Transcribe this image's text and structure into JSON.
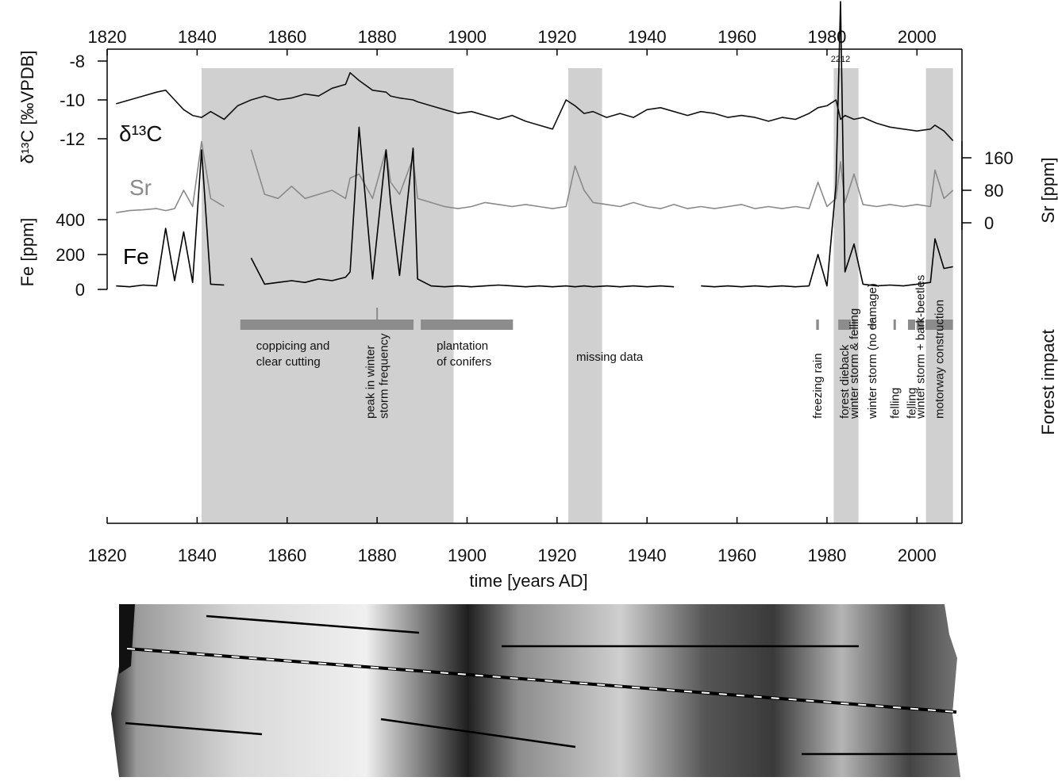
{
  "chart_data": {
    "type": "line",
    "xlabel": "time [years AD]",
    "ylabel": "δ¹³C [‰VPDB]",
    "y2label": "Sr [ppm]",
    "y3label": "Fe [ppm]",
    "impact_label": "Forest impact",
    "xlim": [
      1820,
      2010
    ],
    "xticks": [
      1820,
      1840,
      1860,
      1880,
      1900,
      1920,
      1940,
      1960,
      1980,
      2000
    ],
    "ylim": [
      -13,
      -8
    ],
    "yticks": [
      -12,
      -10,
      -8
    ],
    "y2lim": [
      0,
      160
    ],
    "y2ticks": [
      0,
      80,
      160
    ],
    "y3lim": [
      0,
      400
    ],
    "y3ticks": [
      0,
      200,
      400
    ],
    "x": [
      1822,
      1825,
      1828,
      1831,
      1833,
      1835,
      1837,
      1839,
      1841,
      1843,
      1846,
      1849,
      1852,
      1855,
      1858,
      1861,
      1864,
      1867,
      1870,
      1873,
      1874,
      1876,
      1879,
      1882,
      1883,
      1885,
      1888,
      1889,
      1892,
      1895,
      1898,
      1901,
      1904,
      1907,
      1910,
      1913,
      1916,
      1919,
      1922,
      1924,
      1926,
      1928,
      1931,
      1934,
      1937,
      1940,
      1943,
      1946,
      1949,
      1952,
      1955,
      1958,
      1961,
      1964,
      1967,
      1970,
      1973,
      1976,
      1978,
      1980,
      1982,
      1983,
      1984,
      1986,
      1988,
      1991,
      1994,
      1997,
      2000,
      2003,
      2004,
      2006,
      2008
    ],
    "series": [
      {
        "name": "δ¹³C",
        "color": "#111111",
        "axis": "y",
        "values": [
          -10.2,
          -10.0,
          -9.8,
          -9.6,
          -9.5,
          -10.0,
          -10.5,
          -10.8,
          -10.9,
          -10.6,
          -11.0,
          -10.3,
          -10.0,
          -9.8,
          -10.0,
          -9.9,
          -9.7,
          -9.8,
          -9.4,
          -9.2,
          -8.6,
          -9.0,
          -9.5,
          -9.6,
          -9.8,
          -9.9,
          -10.0,
          -10.1,
          -10.3,
          -10.5,
          -10.7,
          -10.6,
          -10.8,
          -11.0,
          -10.8,
          -11.1,
          -11.3,
          -11.5,
          -10.0,
          -10.3,
          -10.7,
          -10.6,
          -10.9,
          -10.7,
          -10.9,
          -10.5,
          -10.4,
          -10.6,
          -10.8,
          -10.6,
          -10.7,
          -10.9,
          -10.8,
          -10.9,
          -11.1,
          -10.9,
          -11.0,
          -10.7,
          -10.4,
          -10.3,
          -10.0,
          -11.0,
          -10.8,
          -11.0,
          -10.9,
          -11.2,
          -11.4,
          -11.5,
          -11.6,
          -11.5,
          -11.3,
          -11.6,
          -12.1
        ]
      },
      {
        "name": "Sr",
        "color": "#8a8a8a",
        "axis": "y2",
        "values": [
          25,
          30,
          32,
          35,
          30,
          35,
          80,
          40,
          200,
          60,
          40,
          null,
          180,
          70,
          60,
          90,
          60,
          70,
          80,
          60,
          110,
          120,
          60,
          180,
          100,
          70,
          160,
          60,
          50,
          40,
          35,
          40,
          50,
          45,
          40,
          45,
          40,
          35,
          40,
          140,
          80,
          50,
          45,
          40,
          50,
          40,
          35,
          45,
          35,
          40,
          35,
          40,
          45,
          35,
          40,
          35,
          40,
          35,
          100,
          40,
          60,
          150,
          50,
          120,
          45,
          40,
          45,
          40,
          45,
          40,
          130,
          60,
          80
        ]
      },
      {
        "name": "Fe",
        "color": "#000000",
        "axis": "y3",
        "values": [
          20,
          15,
          25,
          20,
          350,
          50,
          330,
          40,
          800,
          30,
          25,
          null,
          180,
          30,
          40,
          50,
          40,
          60,
          50,
          70,
          100,
          930,
          60,
          800,
          500,
          80,
          810,
          60,
          20,
          15,
          20,
          15,
          20,
          25,
          20,
          15,
          20,
          15,
          20,
          15,
          20,
          15,
          20,
          15,
          20,
          15,
          20,
          15,
          null,
          20,
          15,
          20,
          15,
          20,
          15,
          20,
          15,
          20,
          200,
          20,
          600,
          1650,
          100,
          260,
          30,
          20,
          25,
          20,
          30,
          40,
          290,
          120,
          130
        ]
      }
    ],
    "shaded_periods": [
      [
        1841,
        1897
      ],
      [
        1922.5,
        1930
      ],
      [
        1981.5,
        1987
      ],
      [
        2002,
        2008
      ]
    ],
    "annotations": [
      "missing data",
      "2212"
    ],
    "events": [
      {
        "label": [
          "coppicing and",
          "clear cutting"
        ],
        "start": 1849.6,
        "end": 1888.1,
        "orientation": "horizontal"
      },
      {
        "label": [
          "peak in winter",
          "storm frequency"
        ],
        "start": 1880,
        "end": 1880,
        "orientation": "vertical"
      },
      {
        "label": [
          "plantation",
          "of conifers"
        ],
        "start": 1889.7,
        "end": 1910.2,
        "orientation": "horizontal"
      },
      {
        "label": [
          "freezing rain"
        ],
        "start": 1977.6,
        "end": 1978.2,
        "orientation": "vertical"
      },
      {
        "label": [
          "forest dieback"
        ],
        "start": 1982.5,
        "end": 1985.3,
        "orientation": "vertical"
      },
      {
        "label": [
          "winter storm & felling"
        ],
        "start": 1985.7,
        "end": 1986.3,
        "orientation": "vertical"
      },
      {
        "label": [
          "winter storm (no damage)"
        ],
        "start": 1989.8,
        "end": 1990.3,
        "orientation": "vertical"
      },
      {
        "label": [
          "felling"
        ],
        "start": 1994.8,
        "end": 1995.3,
        "orientation": "vertical"
      },
      {
        "label": [
          "felling"
        ],
        "start": 1998,
        "end": 1999.6,
        "orientation": "vertical"
      },
      {
        "label": [
          "winter storm + bark-beetles"
        ],
        "start": 1999.9,
        "end": 2001.5,
        "orientation": "vertical"
      },
      {
        "label": [
          "motorway construction"
        ],
        "start": 2001.9,
        "end": 2008,
        "orientation": "vertical"
      }
    ]
  }
}
